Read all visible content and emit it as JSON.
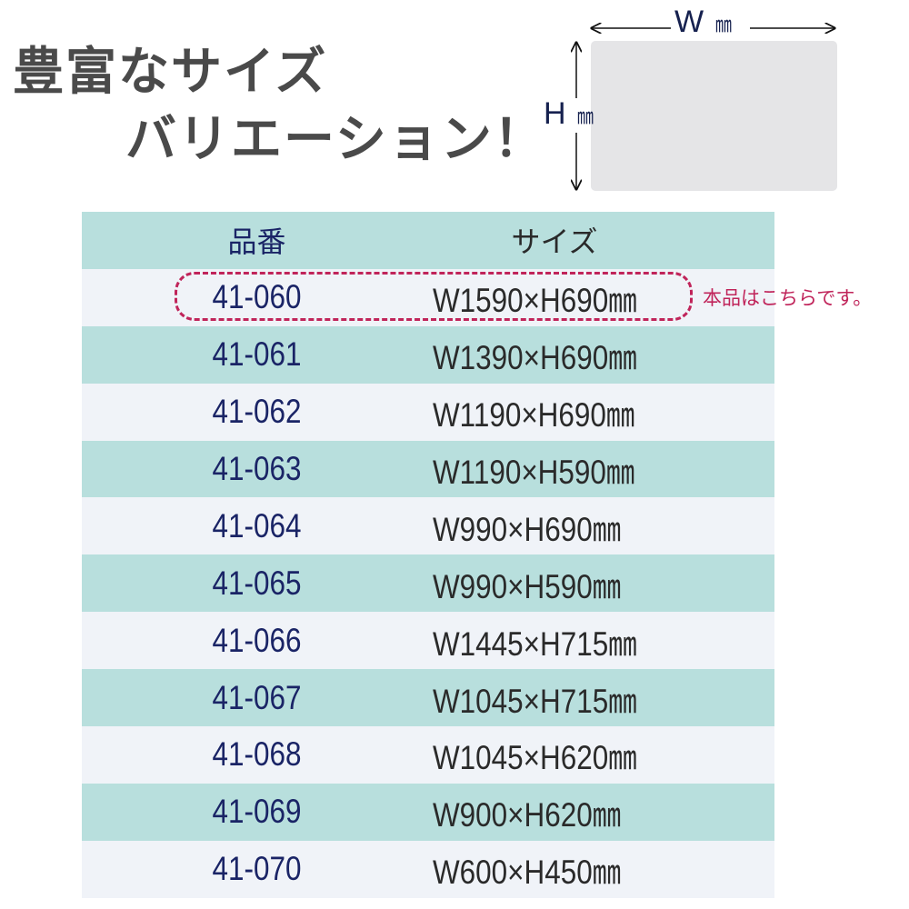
{
  "title": {
    "line1": "豊富なサイズ",
    "line2": "バリエーション！"
  },
  "diagram": {
    "width_label": "W",
    "height_label": "H",
    "unit": "㎜"
  },
  "table": {
    "headers": {
      "code": "品番",
      "size": "サイズ"
    },
    "rows": [
      {
        "code": "41-060",
        "size": "W1590×H690㎜"
      },
      {
        "code": "41-061",
        "size": "W1390×H690㎜"
      },
      {
        "code": "41-062",
        "size": "W1190×H690㎜"
      },
      {
        "code": "41-063",
        "size": "W1190×H590㎜"
      },
      {
        "code": "41-064",
        "size": "W990×H690㎜"
      },
      {
        "code": "41-065",
        "size": "W990×H590㎜"
      },
      {
        "code": "41-066",
        "size": "W1445×H715㎜"
      },
      {
        "code": "41-067",
        "size": "W1045×H715㎜"
      },
      {
        "code": "41-068",
        "size": "W1045×H620㎜"
      },
      {
        "code": "41-069",
        "size": "W900×H620㎜"
      },
      {
        "code": "41-070",
        "size": "W600×H450㎜"
      }
    ]
  },
  "highlight_note": "本品はこちらです。",
  "colors": {
    "header_teal": "#b8dfdd",
    "row_light": "#f0f3f8",
    "code_text": "#1a2466",
    "accent": "#c0245a"
  }
}
